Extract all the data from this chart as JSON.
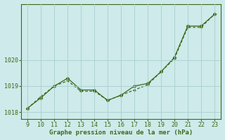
{
  "x": [
    9,
    10,
    11,
    12,
    13,
    14,
    15,
    16,
    17,
    18,
    19,
    20,
    21,
    22,
    23
  ],
  "y_solid": [
    1018.15,
    1018.55,
    1019.0,
    1019.3,
    1018.85,
    1018.85,
    1018.45,
    1018.65,
    1019.0,
    1019.1,
    1019.55,
    1020.1,
    1021.3,
    1021.3,
    1021.75
  ],
  "y_dashed": [
    1018.15,
    1018.6,
    1019.0,
    1019.2,
    1018.8,
    1018.8,
    1018.45,
    1018.65,
    1018.85,
    1019.05,
    1019.55,
    1020.05,
    1021.25,
    1021.25,
    1021.75
  ],
  "line_color": "#3a6b1a",
  "background_color": "#ceeaea",
  "grid_color": "#aacece",
  "xlabel": "Graphe pression niveau de la mer (hPa)",
  "xlim": [
    8.5,
    23.5
  ],
  "ylim": [
    1017.75,
    1022.15
  ],
  "yticks": [
    1018,
    1019,
    1020
  ],
  "xticks": [
    9,
    10,
    11,
    12,
    13,
    14,
    15,
    16,
    17,
    18,
    19,
    20,
    21,
    22,
    23
  ],
  "xlabel_fontsize": 6.5,
  "tick_fontsize": 6.0
}
